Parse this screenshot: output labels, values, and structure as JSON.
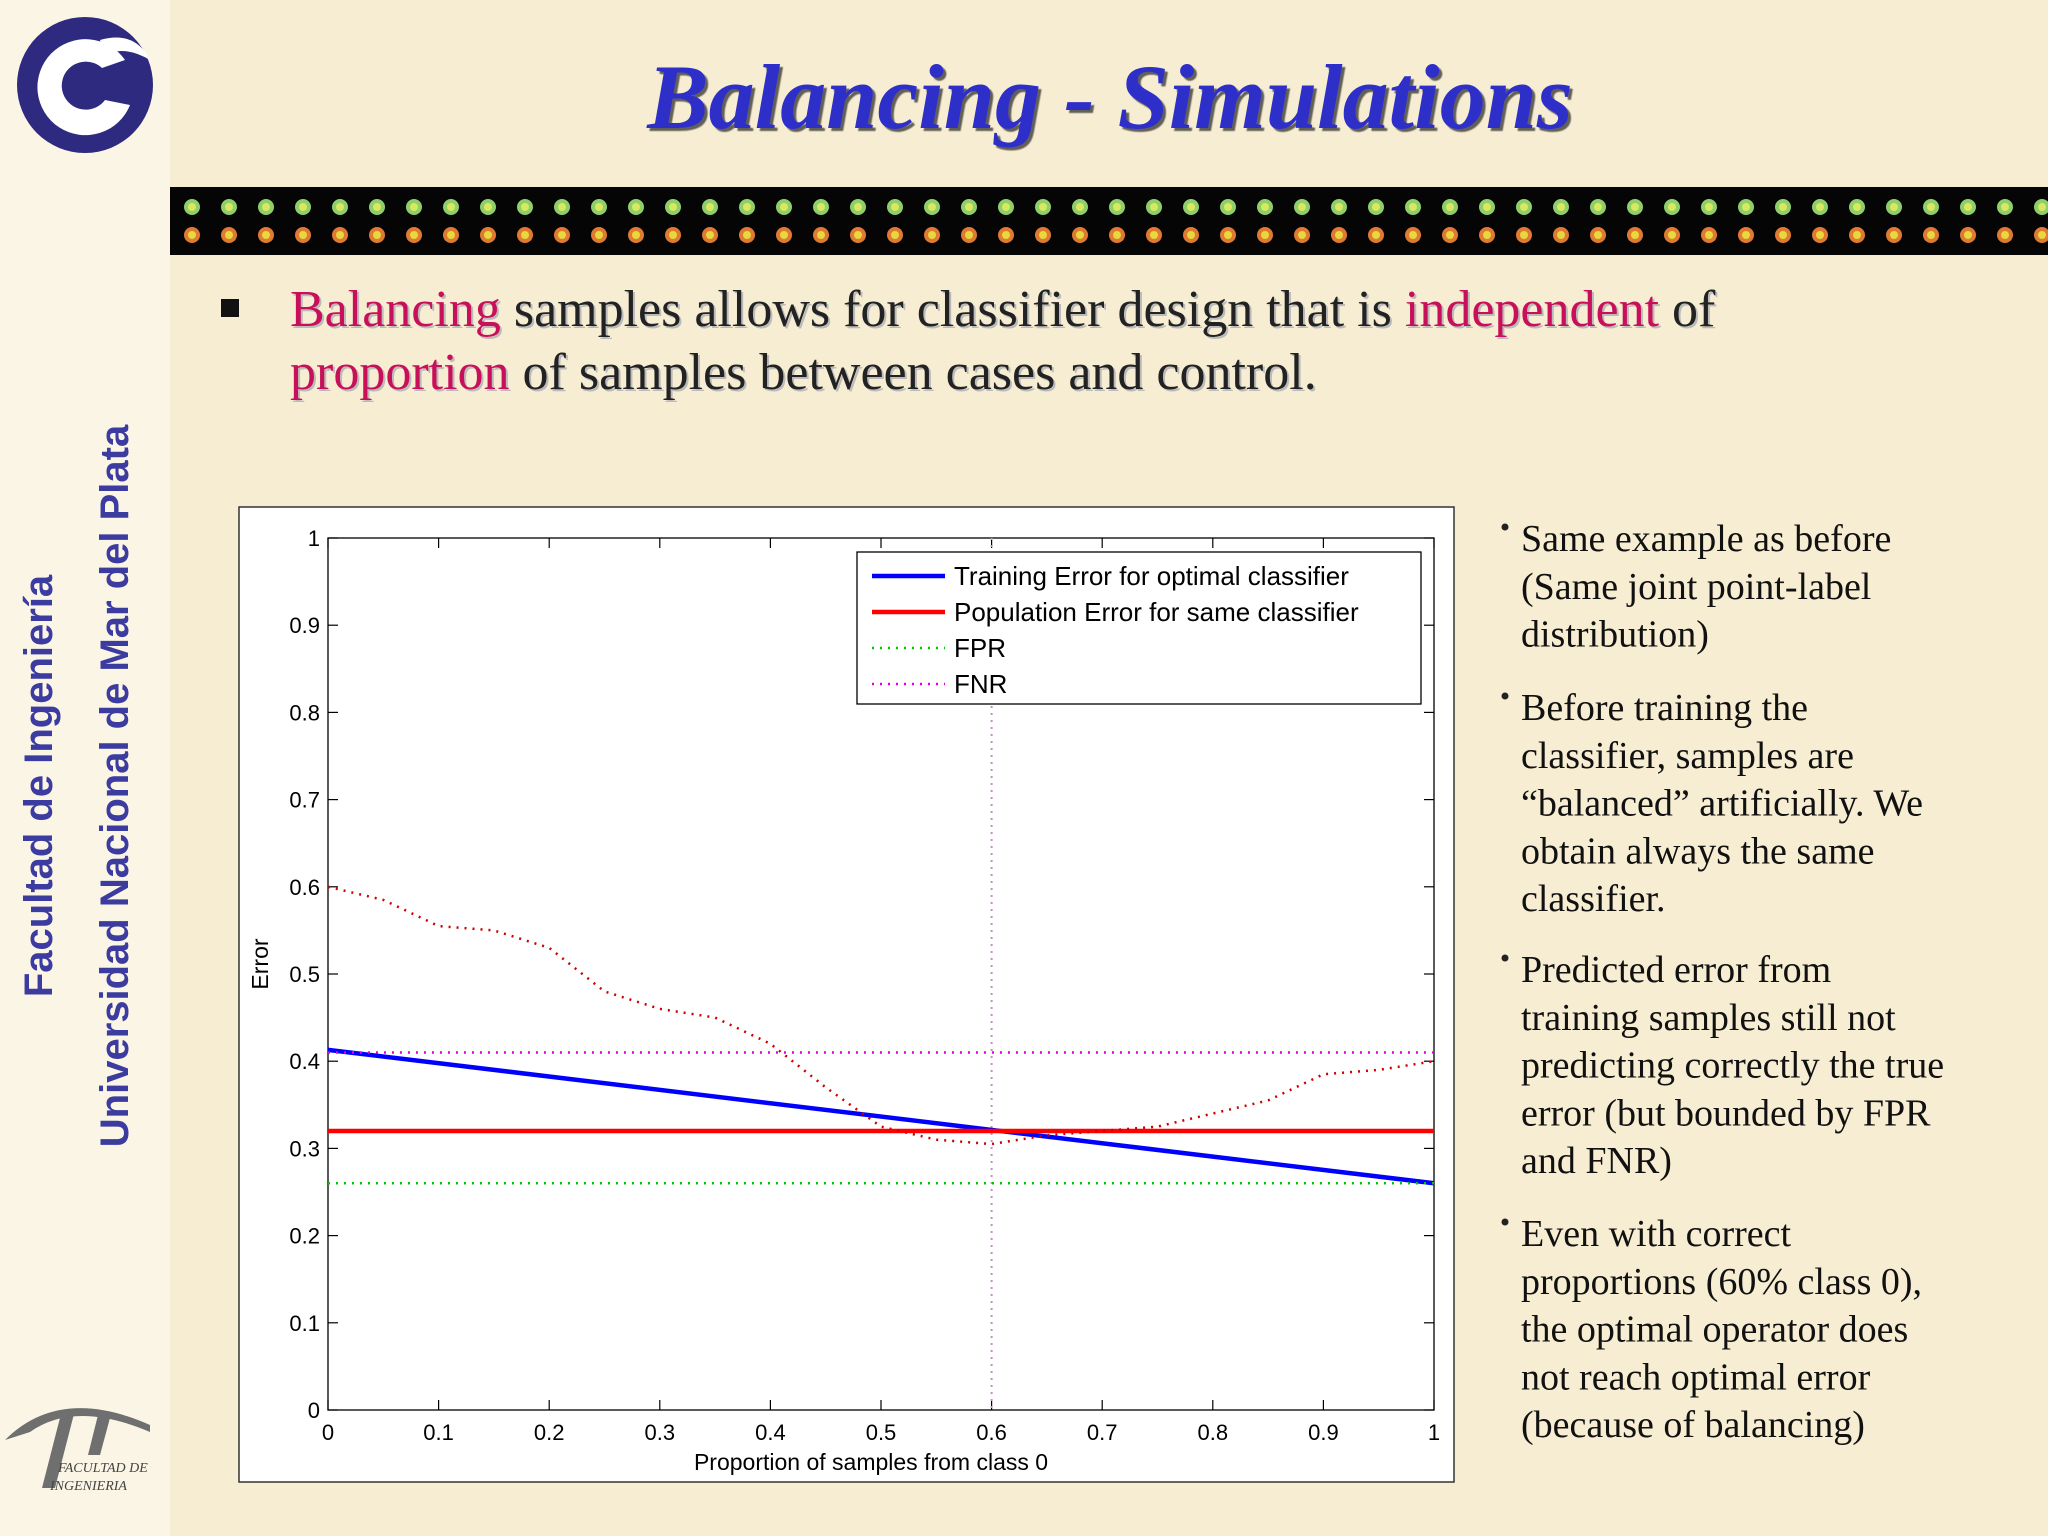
{
  "slide": {
    "title": "Balancing - Simulations",
    "sidebar": [
      "Facultad de Ingeniería",
      "Universidad Nacional de Mar del Plata"
    ],
    "logo_text": [
      "FACULTAD DE",
      "INGENIERIA"
    ],
    "main_bullet": [
      [
        {
          "text": "Balancing",
          "em": true
        },
        {
          "text": " samples allows for classifier design that is "
        },
        {
          "text": "independent",
          "em": true
        },
        {
          "text": " of"
        }
      ],
      [
        {
          "text": "proportion",
          "em": true
        },
        {
          "text": " of samples between cases and control."
        }
      ]
    ],
    "side_bullets": [
      [
        "Same example as before",
        "(Same joint point-label",
        "distribution)"
      ],
      [
        "Before training the",
        "classifier, samples are",
        "“balanced” artificially. We",
        "obtain always the same",
        "classifier."
      ],
      [
        "Predicted error from",
        "training samples still not",
        "predicting correctly the true",
        "error (but bounded by FPR",
        "and FNR)"
      ],
      [
        "Even with correct",
        "proportions (60% class 0),",
        "the optimal operator does",
        "not reach optimal error",
        "(because of balancing)"
      ]
    ]
  },
  "chart_data": {
    "type": "line",
    "xlabel": "Proportion of samples from class 0",
    "ylabel": "Error",
    "xlim": [
      0,
      1
    ],
    "ylim": [
      0,
      1
    ],
    "xticks": [
      0,
      0.1,
      0.2,
      0.3,
      0.4,
      0.5,
      0.6,
      0.7,
      0.8,
      0.9,
      1
    ],
    "yticks": [
      0,
      0.1,
      0.2,
      0.3,
      0.4,
      0.5,
      0.6,
      0.7,
      0.8,
      0.9,
      1
    ],
    "legend": "upper right",
    "vline": 0.6,
    "series": [
      {
        "name": "Training Error for optimal classifier",
        "color": "#0000ff",
        "style": "solid",
        "x": [
          0,
          1
        ],
        "values": [
          0.413,
          0.26
        ]
      },
      {
        "name": "Population Error for same classifier",
        "color": "#ff0000",
        "style": "solid",
        "x": [
          0,
          1
        ],
        "values": [
          0.32,
          0.32
        ]
      },
      {
        "name": "FPR",
        "color": "#00c800",
        "style": "dotted",
        "x": [
          0,
          1
        ],
        "values": [
          0.26,
          0.26
        ]
      },
      {
        "name": "FNR",
        "color": "#e000e0",
        "style": "dotted",
        "x": [
          0,
          1
        ],
        "values": [
          0.41,
          0.41
        ]
      },
      {
        "color": "#cc0000",
        "style": "dotted",
        "x": [
          0,
          0.05,
          0.1,
          0.15,
          0.2,
          0.25,
          0.3,
          0.35,
          0.4,
          0.45,
          0.5,
          0.55,
          0.6,
          0.65,
          0.7,
          0.75,
          0.8,
          0.85,
          0.9,
          0.95,
          1
        ],
        "values": [
          0.6,
          0.585,
          0.555,
          0.55,
          0.53,
          0.48,
          0.46,
          0.45,
          0.42,
          0.37,
          0.325,
          0.31,
          0.305,
          0.315,
          0.32,
          0.325,
          0.34,
          0.355,
          0.385,
          0.39,
          0.4
        ]
      }
    ]
  }
}
